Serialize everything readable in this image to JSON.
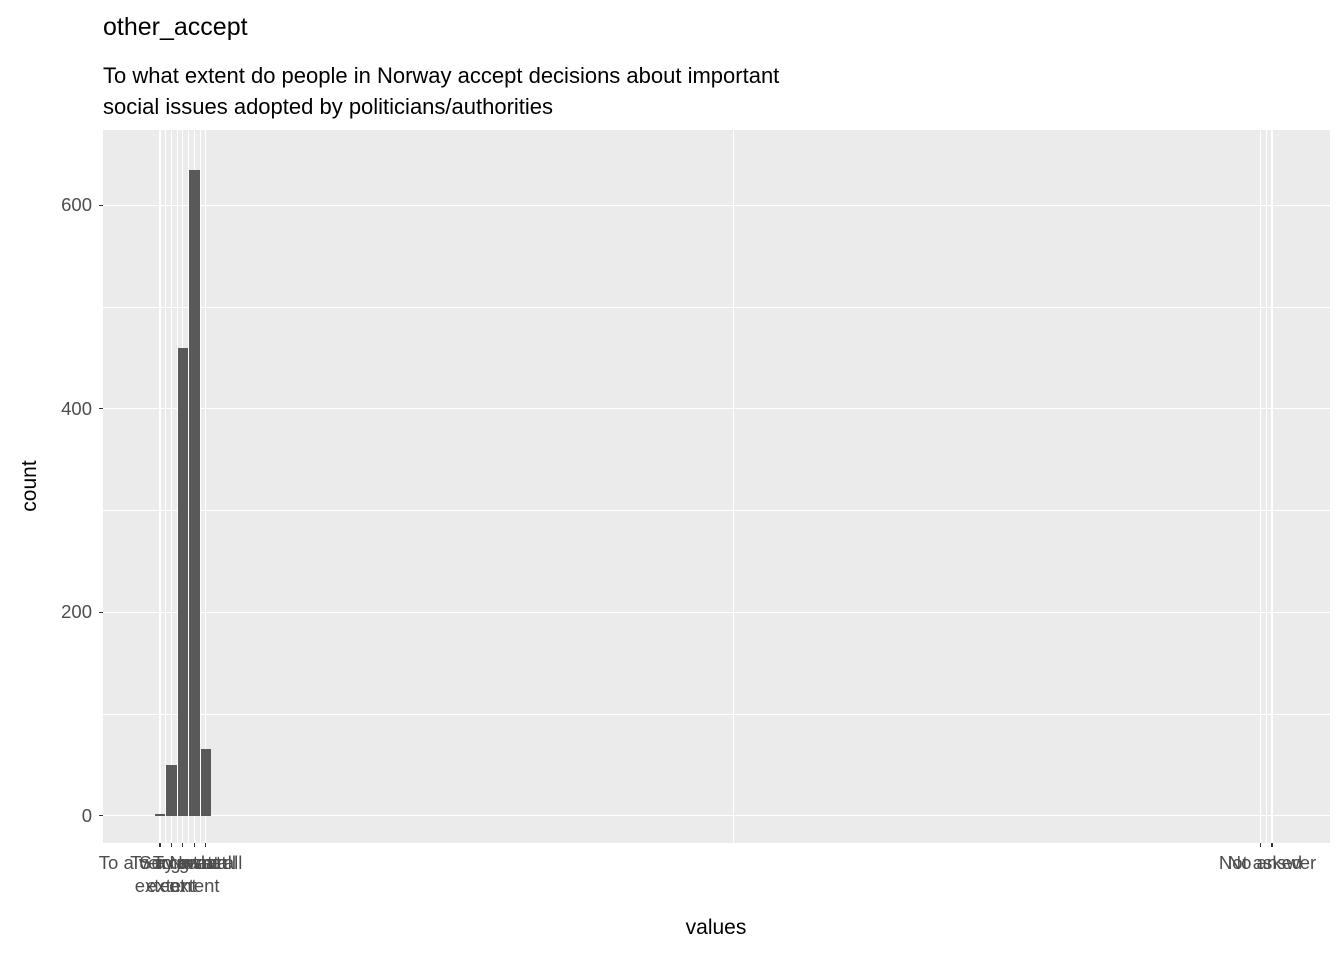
{
  "header": {
    "title": "other_accept",
    "subtitle_lines": [
      "To what extent do people in Norway accept decisions about important",
      "social issues adopted by politicians/authorities"
    ]
  },
  "chart_data": {
    "type": "bar",
    "title": "other_accept",
    "subtitle": "To what extent do people in Norway accept decisions about important social issues adopted by politicians/authorities",
    "xlabel": "values",
    "ylabel": "count",
    "categories": [
      "To a very great extent",
      "To a great extent",
      "Somewhat",
      "To a small extent",
      "Not at all",
      "Not asked",
      "No answer"
    ],
    "tick_labels": [
      "To a very great\nextent",
      "To a great\nextent",
      "Somewhat",
      "To a small\nextent",
      "Not at all",
      "Not asked",
      "No answer"
    ],
    "values": [
      2,
      50,
      460,
      635,
      65,
      0,
      0
    ],
    "x_codes": [
      1,
      2,
      3,
      4,
      5,
      97,
      98
    ],
    "x_range": [
      -3.97,
      103.06
    ],
    "ylim": [
      -27,
      674
    ],
    "yticks": [
      0,
      200,
      400,
      600
    ],
    "y_minor": [
      100,
      300,
      500
    ],
    "bar_width_units": 0.9,
    "grid": true,
    "legend_position": "none",
    "colors": {
      "panel_bg": "#EBEBEB",
      "grid": "#FFFFFF",
      "bar_fill": "#595959",
      "axis_text": "#4D4D4D",
      "tick": "#333333",
      "title_text": "#000000"
    }
  }
}
